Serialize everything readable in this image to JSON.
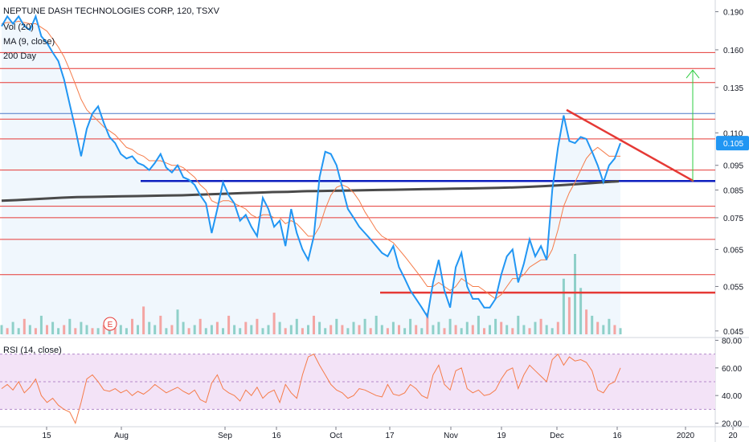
{
  "header": {
    "symbol_line": "NEPTUNE DASH TECHNOLOGIES CORP, 120, TSXV",
    "indicators": [
      "Vol (20)",
      "MA (9, close)",
      "200 Day"
    ]
  },
  "rsi_label": "RSI (14, close)",
  "colors": {
    "price": "#2196f3",
    "ma9": "#f57c4a",
    "ma200": "#4a4a4a",
    "resistance": "#e53935",
    "support": "#0d1fbf",
    "arrow": "#2ecc40",
    "rsi_line": "#f57c4a",
    "rsi_band": "#f3e3f7",
    "price_tag": "#2196f3"
  },
  "earnings_marker": "E",
  "chart_data": [
    {
      "type": "line",
      "panel": "price",
      "y_scale": "log",
      "ylim": [
        0.044,
        0.196
      ],
      "y_ticks": [
        "0.190",
        "0.160",
        "0.135",
        "0.110",
        "0.095",
        "0.085",
        "0.075",
        "0.065",
        "0.055",
        "0.045"
      ],
      "x_ticks": [
        "15",
        "Aug",
        "Sep",
        "16",
        "Oct",
        "17",
        "Nov",
        "19",
        "Dec",
        "16",
        "2020",
        "20"
      ],
      "current_price": "0.105",
      "series": [
        {
          "key": "price",
          "values": [
            0.178,
            0.186,
            0.18,
            0.186,
            0.178,
            0.175,
            0.186,
            0.17,
            0.165,
            0.158,
            0.152,
            0.14,
            0.125,
            0.112,
            0.099,
            0.112,
            0.12,
            0.124,
            0.115,
            0.108,
            0.105,
            0.1,
            0.098,
            0.099,
            0.096,
            0.095,
            0.093,
            0.096,
            0.1,
            0.094,
            0.092,
            0.095,
            0.09,
            0.089,
            0.087,
            0.083,
            0.08,
            0.07,
            0.078,
            0.088,
            0.083,
            0.08,
            0.074,
            0.076,
            0.072,
            0.069,
            0.082,
            0.078,
            0.072,
            0.074,
            0.066,
            0.078,
            0.07,
            0.065,
            0.062,
            0.069,
            0.09,
            0.101,
            0.1,
            0.095,
            0.086,
            0.078,
            0.075,
            0.072,
            0.07,
            0.068,
            0.066,
            0.064,
            0.063,
            0.066,
            0.06,
            0.057,
            0.054,
            0.052,
            0.05,
            0.048,
            0.056,
            0.062,
            0.054,
            0.05,
            0.06,
            0.064,
            0.055,
            0.052,
            0.052,
            0.05,
            0.05,
            0.052,
            0.058,
            0.063,
            0.065,
            0.056,
            0.061,
            0.068,
            0.063,
            0.066,
            0.062,
            0.085,
            0.103,
            0.119,
            0.106,
            0.105,
            0.108,
            0.107,
            0.101,
            0.095,
            0.088,
            0.095,
            0.098,
            0.105
          ]
        },
        {
          "key": "ma9",
          "values": [
            0.18,
            0.181,
            0.181,
            0.182,
            0.181,
            0.18,
            0.18,
            0.177,
            0.174,
            0.168,
            0.162,
            0.155,
            0.146,
            0.137,
            0.128,
            0.122,
            0.119,
            0.116,
            0.113,
            0.111,
            0.109,
            0.106,
            0.103,
            0.102,
            0.1,
            0.099,
            0.097,
            0.097,
            0.097,
            0.096,
            0.095,
            0.095,
            0.094,
            0.092,
            0.09,
            0.087,
            0.085,
            0.081,
            0.08,
            0.081,
            0.081,
            0.08,
            0.079,
            0.078,
            0.076,
            0.075,
            0.076,
            0.076,
            0.075,
            0.075,
            0.073,
            0.074,
            0.073,
            0.071,
            0.069,
            0.069,
            0.072,
            0.078,
            0.083,
            0.086,
            0.087,
            0.086,
            0.084,
            0.081,
            0.077,
            0.074,
            0.071,
            0.069,
            0.068,
            0.067,
            0.065,
            0.063,
            0.061,
            0.059,
            0.057,
            0.055,
            0.055,
            0.056,
            0.055,
            0.054,
            0.055,
            0.057,
            0.056,
            0.055,
            0.055,
            0.054,
            0.053,
            0.052,
            0.053,
            0.055,
            0.057,
            0.057,
            0.058,
            0.06,
            0.061,
            0.062,
            0.062,
            0.065,
            0.071,
            0.079,
            0.084,
            0.088,
            0.093,
            0.098,
            0.101,
            0.103,
            0.101,
            0.099,
            0.099,
            0.099
          ]
        },
        {
          "key": "ma200",
          "values": [
            0.081,
            0.0812,
            0.0815,
            0.0818,
            0.0821,
            0.0823,
            0.0824,
            0.0825,
            0.0826,
            0.0827,
            0.0828,
            0.0829,
            0.083,
            0.0832,
            0.0834,
            0.0836,
            0.0838,
            0.084,
            0.0842,
            0.0843,
            0.0845,
            0.0846,
            0.0847,
            0.0848,
            0.0849,
            0.085,
            0.0851,
            0.0852,
            0.0853,
            0.0854,
            0.0855,
            0.0856,
            0.0857,
            0.0858,
            0.086,
            0.0862,
            0.0865,
            0.0868,
            0.0872,
            0.0876,
            0.088,
            0.0884
          ]
        }
      ],
      "horizontal_levels": [
        0.158,
        0.147,
        0.138,
        0.117,
        0.107,
        0.093,
        0.079,
        0.075,
        0.068,
        0.058
      ],
      "support_level": 0.0885,
      "lower_support_level": 0.0535,
      "trendline": [
        0.122,
        0.0885
      ],
      "target_arrow": [
        0.0885,
        0.146
      ]
    },
    {
      "type": "bar",
      "panel": "volume",
      "values": [
        3,
        2,
        4,
        2,
        5,
        3,
        2,
        6,
        3,
        4,
        2,
        3,
        5,
        2,
        4,
        3,
        2,
        2,
        3,
        4,
        2,
        3,
        2,
        5,
        3,
        9,
        4,
        3,
        6,
        2,
        3,
        8,
        4,
        2,
        3,
        5,
        2,
        3,
        4,
        2,
        6,
        3,
        2,
        4,
        3,
        5,
        2,
        3,
        7,
        4,
        2,
        3,
        5,
        2,
        3,
        6,
        4,
        2,
        3,
        5,
        3,
        2,
        4,
        3,
        5,
        2,
        6,
        3,
        2,
        4,
        3,
        2,
        5,
        3,
        2,
        7,
        3,
        4,
        2,
        5,
        3,
        2,
        4,
        3,
        6,
        2,
        3,
        5,
        4,
        3,
        2,
        6,
        3,
        2,
        4,
        5,
        3,
        2,
        4,
        18,
        12,
        26,
        15,
        8,
        6,
        4,
        3,
        5,
        3,
        2
      ],
      "up": [
        1,
        0,
        1,
        1,
        0,
        1,
        0,
        1,
        0,
        1,
        1,
        0,
        1,
        0,
        1,
        1,
        0,
        1,
        0,
        1,
        0,
        1,
        1,
        0,
        1,
        0,
        1,
        1,
        0,
        1,
        0,
        1,
        1,
        0,
        1,
        0,
        1,
        1,
        0,
        1,
        0,
        1,
        1,
        0,
        1,
        0,
        1,
        1,
        0,
        1,
        0,
        1,
        1,
        0,
        1,
        0,
        1,
        1,
        0,
        1,
        0,
        1,
        1,
        0,
        1,
        0,
        1,
        1,
        0,
        1,
        0,
        1,
        1,
        0,
        1,
        0,
        1,
        1,
        0,
        1,
        0,
        1,
        1,
        0,
        1,
        0,
        1,
        1,
        0,
        1,
        0,
        1,
        1,
        0,
        1,
        0,
        1,
        1,
        0,
        1,
        0,
        1,
        1,
        0,
        1,
        0,
        1,
        1,
        0,
        1
      ]
    },
    {
      "type": "line",
      "panel": "rsi",
      "ylim": [
        18,
        82
      ],
      "y_ticks": [
        "80.00",
        "60.00",
        "40.00",
        "20.00"
      ],
      "band": [
        30,
        70
      ],
      "values": [
        45,
        48,
        44,
        50,
        42,
        46,
        52,
        40,
        35,
        38,
        33,
        30,
        28,
        20,
        35,
        52,
        55,
        50,
        44,
        43,
        45,
        42,
        44,
        40,
        43,
        41,
        44,
        48,
        45,
        42,
        44,
        46,
        43,
        41,
        44,
        37,
        35,
        49,
        55,
        45,
        42,
        40,
        36,
        44,
        40,
        46,
        38,
        42,
        44,
        35,
        48,
        42,
        38,
        55,
        68,
        70,
        62,
        55,
        48,
        44,
        42,
        38,
        40,
        45,
        44,
        42,
        40,
        39,
        48,
        41,
        40,
        42,
        48,
        45,
        40,
        38,
        55,
        62,
        48,
        44,
        58,
        60,
        45,
        42,
        44,
        40,
        41,
        44,
        52,
        58,
        60,
        45,
        55,
        62,
        58,
        54,
        50,
        66,
        70,
        62,
        68,
        65,
        66,
        64,
        58,
        44,
        42,
        48,
        50,
        60
      ]
    }
  ]
}
